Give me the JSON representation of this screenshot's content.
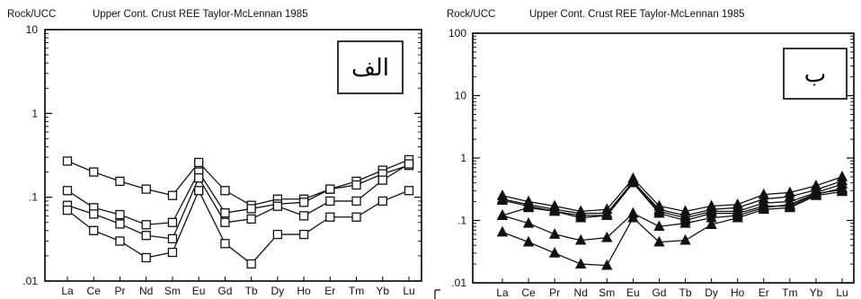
{
  "chart_data": [
    {
      "type": "line",
      "y_scale": "log",
      "ylim": [
        0.01,
        10
      ],
      "ylabel": "Rock/UCC",
      "title": "Upper Cont. Crust REE Taylor-McLennan 1985",
      "panel_label": "الف",
      "marker": "open-square",
      "y_ticks": [
        "10",
        "1",
        ".1",
        ".01"
      ],
      "categories": [
        "La",
        "Ce",
        "Pr",
        "Nd",
        "Sm",
        "Eu",
        "Gd",
        "Tb",
        "Dy",
        "Ho",
        "Er",
        "Tm",
        "Yb",
        "Lu"
      ],
      "series": [
        {
          "values": [
            0.27,
            0.2,
            0.155,
            0.125,
            0.105,
            0.26,
            0.12,
            0.08,
            0.095,
            0.095,
            0.125,
            0.155,
            0.21,
            0.28
          ]
        },
        {
          "values": [
            0.12,
            0.075,
            0.062,
            0.047,
            0.05,
            0.2,
            0.065,
            0.073,
            0.083,
            0.087,
            0.125,
            0.14,
            0.19,
            0.24
          ]
        },
        {
          "values": [
            0.08,
            0.063,
            0.048,
            0.035,
            0.032,
            0.17,
            0.05,
            0.055,
            0.078,
            0.06,
            0.09,
            0.09,
            0.16,
            0.25
          ]
        },
        {
          "values": [
            0.07,
            0.04,
            0.03,
            0.019,
            0.022,
            0.12,
            0.028,
            0.016,
            0.036,
            0.036,
            0.058,
            0.058,
            0.09,
            0.12
          ]
        }
      ]
    },
    {
      "type": "line",
      "y_scale": "log",
      "ylim": [
        0.01,
        100
      ],
      "ylabel": "Rock/UCC",
      "title": "Upper Cont. Crust REE Taylor-McLennan 1985",
      "panel_label": "ب",
      "marker": "filled-triangle",
      "y_ticks": [
        "100",
        "10",
        "1",
        ".1",
        ".01"
      ],
      "categories": [
        "La",
        "Ce",
        "Pr",
        "Nd",
        "Sm",
        "Eu",
        "Gd",
        "Tb",
        "Dy",
        "Ho",
        "Er",
        "Tm",
        "Yb",
        "Lu"
      ],
      "series": [
        {
          "values": [
            0.25,
            0.2,
            0.17,
            0.14,
            0.15,
            0.47,
            0.17,
            0.14,
            0.17,
            0.18,
            0.26,
            0.28,
            0.36,
            0.5
          ]
        },
        {
          "values": [
            0.22,
            0.18,
            0.15,
            0.13,
            0.13,
            0.42,
            0.15,
            0.12,
            0.15,
            0.16,
            0.22,
            0.24,
            0.31,
            0.43
          ]
        },
        {
          "values": [
            0.21,
            0.17,
            0.14,
            0.12,
            0.12,
            0.4,
            0.14,
            0.11,
            0.14,
            0.14,
            0.19,
            0.2,
            0.28,
            0.38
          ]
        },
        {
          "values": [
            0.12,
            0.16,
            0.14,
            0.11,
            0.12,
            0.4,
            0.13,
            0.1,
            0.13,
            0.13,
            0.17,
            0.17,
            0.26,
            0.33
          ]
        },
        {
          "values": [
            0.12,
            0.09,
            0.06,
            0.048,
            0.053,
            0.13,
            0.08,
            0.09,
            0.11,
            0.12,
            0.16,
            0.18,
            0.27,
            0.31
          ]
        },
        {
          "values": [
            0.065,
            0.045,
            0.03,
            0.02,
            0.019,
            0.11,
            0.045,
            0.048,
            0.086,
            0.11,
            0.15,
            0.16,
            0.25,
            0.29
          ]
        }
      ]
    }
  ]
}
